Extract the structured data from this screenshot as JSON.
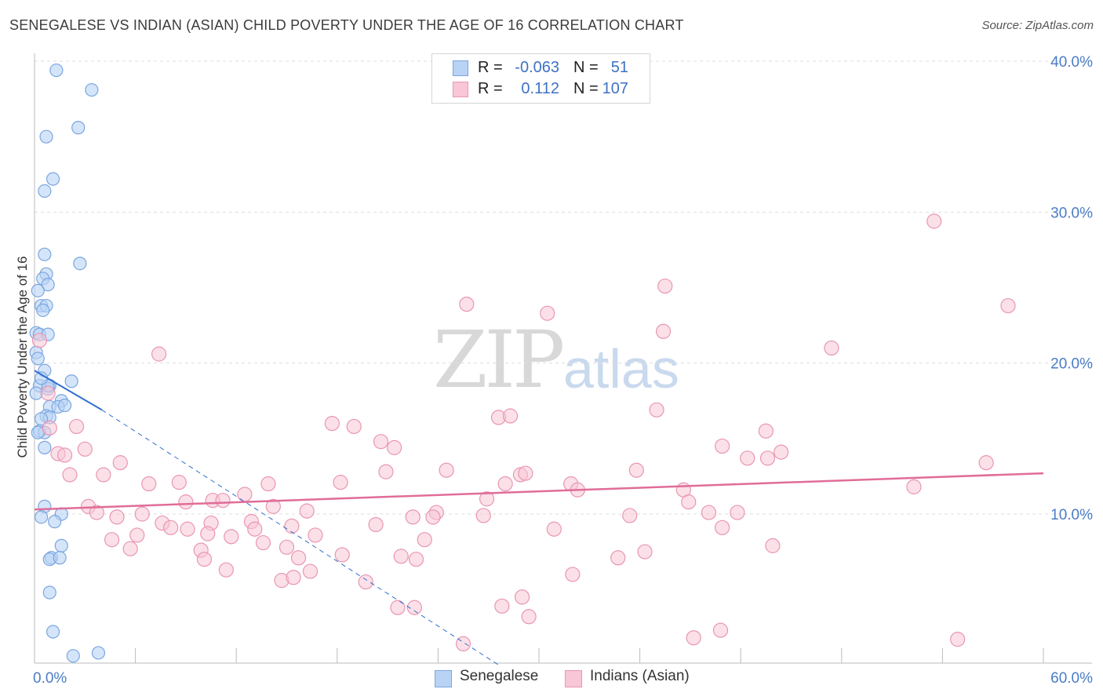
{
  "header": {
    "title": "SENEGALESE VS INDIAN (ASIAN) CHILD POVERTY UNDER THE AGE OF 16 CORRELATION CHART",
    "source": "Source: ZipAtlas.com"
  },
  "watermark": {
    "zip": "ZIP",
    "atlas": "atlas"
  },
  "legend": {
    "rows": [
      {
        "r_label": "R =",
        "r_value": "-0.063",
        "n_label": "N =",
        "n_value": "51"
      },
      {
        "r_label": "R =",
        "r_value": "0.112",
        "n_label": "N =",
        "n_value": "107"
      }
    ]
  },
  "bottom_legend": {
    "series_a": "Senegalese",
    "series_b": "Indians (Asian)"
  },
  "colors": {
    "blue_fill": "#b9d3f5",
    "blue_stroke": "#7aa6e0",
    "blue_line": "#2f6fd0",
    "pink_fill": "#f8c6d6",
    "pink_stroke": "#e996b3",
    "pink_line": "#e06d98",
    "grid": "#dddddd",
    "tick_text": "#4a7cc7"
  },
  "chart_data": {
    "type": "scatter",
    "title": "SENEGALESE VS INDIAN (ASIAN) CHILD POVERTY UNDER THE AGE OF 16 CORRELATION CHART",
    "ylabel": "Child Poverty Under the Age of 16",
    "xlabel": "",
    "xlim": [
      0,
      60
    ],
    "ylim": [
      0,
      40
    ],
    "x_ticks": [
      {
        "value": 0,
        "label": "0.0%"
      },
      {
        "value": 60,
        "label": "60.0%"
      }
    ],
    "y_ticks": [
      {
        "value": 10,
        "label": "10.0%"
      },
      {
        "value": 20,
        "label": "20.0%"
      },
      {
        "value": 30,
        "label": "30.0%"
      },
      {
        "value": 40,
        "label": "40.0%"
      }
    ],
    "grid": true,
    "legend_position": "top-center",
    "series": [
      {
        "name": "Senegalese",
        "color": "#7aa6e0",
        "trend": {
          "x0": 0,
          "y0": 19.5,
          "x1": 4.0,
          "y1": 16.9,
          "dash_to_x": 27.6,
          "dash_to_y": 0
        },
        "points": [
          [
            1.3,
            39.4
          ],
          [
            3.4,
            38.1
          ],
          [
            2.6,
            35.6
          ],
          [
            0.7,
            35.0
          ],
          [
            1.1,
            32.2
          ],
          [
            0.6,
            31.4
          ],
          [
            2.7,
            26.6
          ],
          [
            0.6,
            27.2
          ],
          [
            0.7,
            25.9
          ],
          [
            0.5,
            25.6
          ],
          [
            0.8,
            25.2
          ],
          [
            0.2,
            24.8
          ],
          [
            0.4,
            23.8
          ],
          [
            0.7,
            23.8
          ],
          [
            0.5,
            23.5
          ],
          [
            0.1,
            22.0
          ],
          [
            0.3,
            21.9
          ],
          [
            0.8,
            21.9
          ],
          [
            0.1,
            20.7
          ],
          [
            0.2,
            20.3
          ],
          [
            0.6,
            19.5
          ],
          [
            2.2,
            18.8
          ],
          [
            0.9,
            18.5
          ],
          [
            0.8,
            18.3
          ],
          [
            0.3,
            18.5
          ],
          [
            1.6,
            17.5
          ],
          [
            0.9,
            17.1
          ],
          [
            1.4,
            17.1
          ],
          [
            0.7,
            16.5
          ],
          [
            0.9,
            16.4
          ],
          [
            0.4,
            16.3
          ],
          [
            0.3,
            15.5
          ],
          [
            0.6,
            15.4
          ],
          [
            0.6,
            14.4
          ],
          [
            0.6,
            10.5
          ],
          [
            0.4,
            9.8
          ],
          [
            1.6,
            10.0
          ],
          [
            1.2,
            9.5
          ],
          [
            1.6,
            7.9
          ],
          [
            1.0,
            7.1
          ],
          [
            0.9,
            7.0
          ],
          [
            1.5,
            7.1
          ],
          [
            0.9,
            4.8
          ],
          [
            1.1,
            2.2
          ],
          [
            2.3,
            0.6
          ],
          [
            3.8,
            0.8
          ],
          [
            0.1,
            18.0
          ],
          [
            0.2,
            15.4
          ],
          [
            1.8,
            17.2
          ],
          [
            0.8,
            18.5
          ],
          [
            0.4,
            19.0
          ]
        ]
      },
      {
        "name": "Indians (Asian)",
        "color": "#e996b3",
        "trend": {
          "x0": 0,
          "y0": 10.3,
          "x1": 60,
          "y1": 12.7
        },
        "points": [
          [
            53.5,
            29.4
          ],
          [
            0.3,
            21.5
          ],
          [
            37.5,
            25.1
          ],
          [
            57.9,
            23.8
          ],
          [
            25.7,
            23.9
          ],
          [
            30.5,
            23.3
          ],
          [
            7.4,
            20.6
          ],
          [
            37.4,
            22.1
          ],
          [
            47.4,
            21.0
          ],
          [
            0.8,
            18.0
          ],
          [
            37.0,
            16.9
          ],
          [
            27.6,
            16.4
          ],
          [
            28.3,
            16.5
          ],
          [
            17.7,
            16.0
          ],
          [
            43.5,
            15.5
          ],
          [
            19.0,
            15.8
          ],
          [
            0.9,
            15.7
          ],
          [
            2.5,
            15.8
          ],
          [
            20.6,
            14.8
          ],
          [
            21.4,
            14.4
          ],
          [
            40.9,
            14.5
          ],
          [
            44.4,
            14.1
          ],
          [
            3.0,
            14.3
          ],
          [
            1.4,
            14.0
          ],
          [
            1.8,
            13.9
          ],
          [
            42.4,
            13.7
          ],
          [
            43.6,
            13.7
          ],
          [
            56.6,
            13.4
          ],
          [
            5.1,
            13.4
          ],
          [
            2.1,
            12.6
          ],
          [
            4.1,
            12.6
          ],
          [
            24.5,
            12.9
          ],
          [
            20.9,
            12.8
          ],
          [
            28.9,
            12.6
          ],
          [
            29.2,
            12.7
          ],
          [
            35.8,
            12.9
          ],
          [
            6.8,
            12.0
          ],
          [
            8.6,
            12.1
          ],
          [
            12.5,
            11.3
          ],
          [
            13.9,
            12.0
          ],
          [
            18.2,
            12.1
          ],
          [
            28.0,
            12.0
          ],
          [
            31.9,
            12.0
          ],
          [
            32.3,
            11.6
          ],
          [
            38.6,
            11.6
          ],
          [
            52.3,
            11.8
          ],
          [
            9.0,
            10.8
          ],
          [
            10.6,
            10.9
          ],
          [
            11.2,
            10.9
          ],
          [
            14.2,
            10.5
          ],
          [
            16.2,
            10.2
          ],
          [
            23.9,
            10.1
          ],
          [
            26.9,
            11.0
          ],
          [
            38.9,
            10.8
          ],
          [
            40.1,
            10.1
          ],
          [
            3.2,
            10.5
          ],
          [
            3.7,
            10.1
          ],
          [
            4.9,
            9.8
          ],
          [
            6.4,
            10.0
          ],
          [
            7.6,
            9.4
          ],
          [
            8.1,
            9.1
          ],
          [
            9.1,
            9.0
          ],
          [
            10.5,
            9.4
          ],
          [
            12.9,
            9.5
          ],
          [
            13.1,
            9.0
          ],
          [
            15.3,
            9.2
          ],
          [
            16.7,
            8.6
          ],
          [
            20.3,
            9.3
          ],
          [
            22.5,
            9.8
          ],
          [
            23.7,
            9.8
          ],
          [
            26.7,
            9.9
          ],
          [
            30.9,
            9.0
          ],
          [
            35.4,
            9.9
          ],
          [
            40.9,
            9.1
          ],
          [
            41.8,
            10.1
          ],
          [
            4.6,
            8.3
          ],
          [
            6.1,
            8.6
          ],
          [
            10.3,
            8.7
          ],
          [
            11.7,
            8.5
          ],
          [
            13.6,
            8.1
          ],
          [
            23.2,
            8.3
          ],
          [
            5.7,
            7.7
          ],
          [
            9.9,
            7.6
          ],
          [
            15.0,
            7.8
          ],
          [
            15.7,
            7.1
          ],
          [
            18.3,
            7.3
          ],
          [
            21.8,
            7.2
          ],
          [
            22.7,
            7.0
          ],
          [
            34.7,
            7.1
          ],
          [
            36.3,
            7.5
          ],
          [
            43.9,
            7.9
          ],
          [
            10.1,
            7.0
          ],
          [
            11.4,
            6.3
          ],
          [
            14.7,
            5.6
          ],
          [
            15.4,
            5.8
          ],
          [
            16.4,
            6.2
          ],
          [
            19.7,
            5.5
          ],
          [
            32.0,
            6.0
          ],
          [
            27.8,
            3.9
          ],
          [
            29.0,
            4.5
          ],
          [
            21.6,
            3.8
          ],
          [
            22.6,
            3.8
          ],
          [
            29.4,
            3.2
          ],
          [
            39.2,
            1.8
          ],
          [
            40.8,
            2.3
          ],
          [
            25.5,
            1.4
          ],
          [
            54.9,
            1.7
          ]
        ]
      }
    ]
  }
}
